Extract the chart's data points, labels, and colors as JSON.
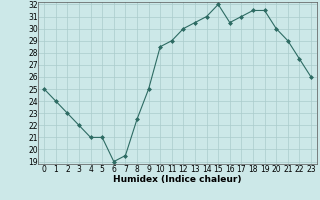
{
  "x": [
    0,
    1,
    2,
    3,
    4,
    5,
    6,
    7,
    8,
    9,
    10,
    11,
    12,
    13,
    14,
    15,
    16,
    17,
    18,
    19,
    20,
    21,
    22,
    23
  ],
  "y": [
    25,
    24,
    23,
    22,
    21,
    21,
    19,
    19.5,
    22.5,
    25,
    28.5,
    29,
    30,
    30.5,
    31,
    32,
    30.5,
    31,
    31.5,
    31.5,
    30,
    29,
    27.5,
    26
  ],
  "line_color": "#2d6b63",
  "marker": "D",
  "marker_size": 2,
  "bg_color": "#cce8e8",
  "grid_color": "#aacccc",
  "xlabel": "Humidex (Indice chaleur)",
  "ylim_min": 19,
  "ylim_max": 32,
  "xlim_min": -0.5,
  "xlim_max": 23.5,
  "yticks": [
    19,
    20,
    21,
    22,
    23,
    24,
    25,
    26,
    27,
    28,
    29,
    30,
    31,
    32
  ],
  "xticks": [
    0,
    1,
    2,
    3,
    4,
    5,
    6,
    7,
    8,
    9,
    10,
    11,
    12,
    13,
    14,
    15,
    16,
    17,
    18,
    19,
    20,
    21,
    22,
    23
  ],
  "tick_label_size": 5.5,
  "xlabel_size": 6.5,
  "linewidth": 0.8
}
